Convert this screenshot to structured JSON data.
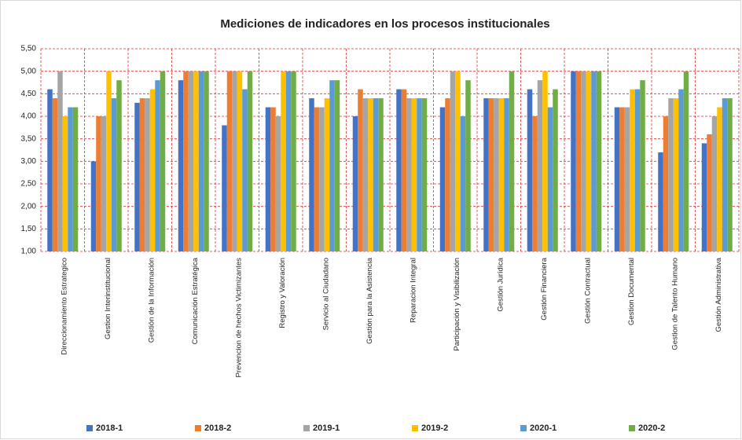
{
  "chart_data": {
    "type": "bar",
    "title": "Mediciones de indicadores en los procesos institucionales",
    "categories": [
      "Direccionamiento Estrategico",
      "Gestion Interinstitucional",
      "Gestión de la Información",
      "Comunicación Estratégica",
      "Prevencion de hechos Victimizantes",
      "Registro y Valoración",
      "Servicio al Ciudadano",
      "Gestión para la Asistencia",
      "Reparacion Integral",
      "Participación y Visibilización",
      "Gestión Jurídica",
      "Gestión Financiera",
      "Gestión Contractual",
      "Gestion Documental",
      "Gestion de Talento Humano",
      "Gestión Administrativa"
    ],
    "series": [
      {
        "name": "2018-1",
        "color": "#4472c4",
        "values": [
          4.6,
          3.0,
          4.3,
          4.8,
          3.8,
          4.2,
          4.4,
          4.0,
          4.6,
          4.2,
          4.4,
          4.6,
          5.0,
          4.2,
          3.2,
          3.4
        ]
      },
      {
        "name": "2018-2",
        "color": "#ed7d31",
        "values": [
          4.4,
          4.0,
          4.4,
          5.0,
          5.0,
          4.2,
          4.2,
          4.6,
          4.6,
          4.4,
          4.4,
          4.0,
          5.0,
          4.2,
          4.0,
          3.6
        ]
      },
      {
        "name": "2019-1",
        "color": "#a5a5a5",
        "values": [
          5.0,
          4.0,
          4.4,
          5.0,
          5.0,
          4.0,
          4.2,
          4.4,
          4.4,
          5.0,
          4.4,
          4.8,
          5.0,
          4.2,
          4.4,
          4.0
        ]
      },
      {
        "name": "2019-2",
        "color": "#ffc000",
        "values": [
          4.0,
          5.0,
          4.6,
          5.0,
          5.0,
          5.0,
          4.4,
          4.4,
          4.4,
          5.0,
          4.4,
          5.0,
          5.0,
          4.6,
          4.4,
          4.2
        ]
      },
      {
        "name": "2020-1",
        "color": "#5b9bd5",
        "values": [
          4.2,
          4.4,
          4.8,
          5.0,
          4.6,
          5.0,
          4.8,
          4.4,
          4.4,
          4.0,
          4.4,
          4.2,
          5.0,
          4.6,
          4.6,
          4.4
        ]
      },
      {
        "name": "2020-2",
        "color": "#70ad47",
        "values": [
          4.2,
          4.8,
          5.0,
          5.0,
          5.0,
          5.0,
          4.8,
          4.4,
          4.4,
          4.8,
          5.0,
          4.6,
          5.0,
          4.8,
          5.0,
          4.4
        ]
      }
    ],
    "ylim": [
      1,
      5.5
    ],
    "yticks": [
      {
        "value": 1,
        "label": "1,00"
      },
      {
        "value": 1.5,
        "label": "1,50"
      },
      {
        "value": 2,
        "label": "2,00"
      },
      {
        "value": 2.5,
        "label": "2,50"
      },
      {
        "value": 3,
        "label": "3,00"
      },
      {
        "value": 3.5,
        "label": "3,50"
      },
      {
        "value": 4,
        "label": "4,00"
      },
      {
        "value": 4.5,
        "label": "4,50"
      },
      {
        "value": 5,
        "label": "5,00"
      },
      {
        "value": 5.5,
        "label": "5,50"
      }
    ],
    "grid": true,
    "legend": "bottom"
  }
}
